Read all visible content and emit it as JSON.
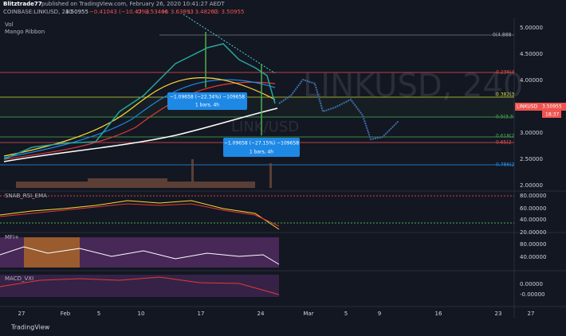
{
  "header": {
    "user": "Blitztrade77",
    "published": "published on TradingView.com, February 26, 2020 10:41:27 AEDT",
    "symbol": "COINBASE:LINKUSD, 240",
    "price": "3.50955",
    "change": "−0.41043 (−10.47%)",
    "o": "O: 3.53466",
    "h": "H: 3.63893",
    "l": "L: 3.48263",
    "c": "C: 3.50955"
  },
  "indicators": [
    "Vol",
    "Mango Ribbon"
  ],
  "price_axis": [
    "5.00000",
    "4.50000",
    "4.00000",
    "3.50000",
    "3.00000",
    "2.50000",
    "2.00000"
  ],
  "fib_labels": [
    "0(4.888",
    "0.236(4",
    "0.382(3",
    "0.5(3.3",
    "0.618(2",
    "0.65(2",
    "0.786(2"
  ],
  "price_tag": {
    "symbol": "LINKUSD",
    "price": "3.50955",
    "time": "18:37"
  },
  "annotations": [
    {
      "line1": "−1.09658 (−22.34%) −109658",
      "line2": "1 bars, 4h"
    },
    {
      "line1": "−1.09658 (−27.15%) −109658",
      "line2": "1 bars, 4h"
    }
  ],
  "watermark": {
    "big": "LINKUSD, 240",
    "small": "LINK/USD"
  },
  "panes": [
    {
      "title": "SNAB_RSI_EMA",
      "ticks": [
        "80.00000",
        "60.00000",
        "40.00000",
        "20.00000"
      ]
    },
    {
      "title": "MFI+",
      "ticks": [
        "80.00000",
        "40.00000"
      ]
    },
    {
      "title": "MACD_VXI",
      "ticks": [
        "0.00000",
        "-0.00000"
      ]
    }
  ],
  "time_axis": [
    "27",
    "Feb",
    "5",
    "10",
    "17",
    "24",
    "Mar",
    "5",
    "9",
    "16",
    "23",
    "27"
  ],
  "footer": "TradingView"
}
